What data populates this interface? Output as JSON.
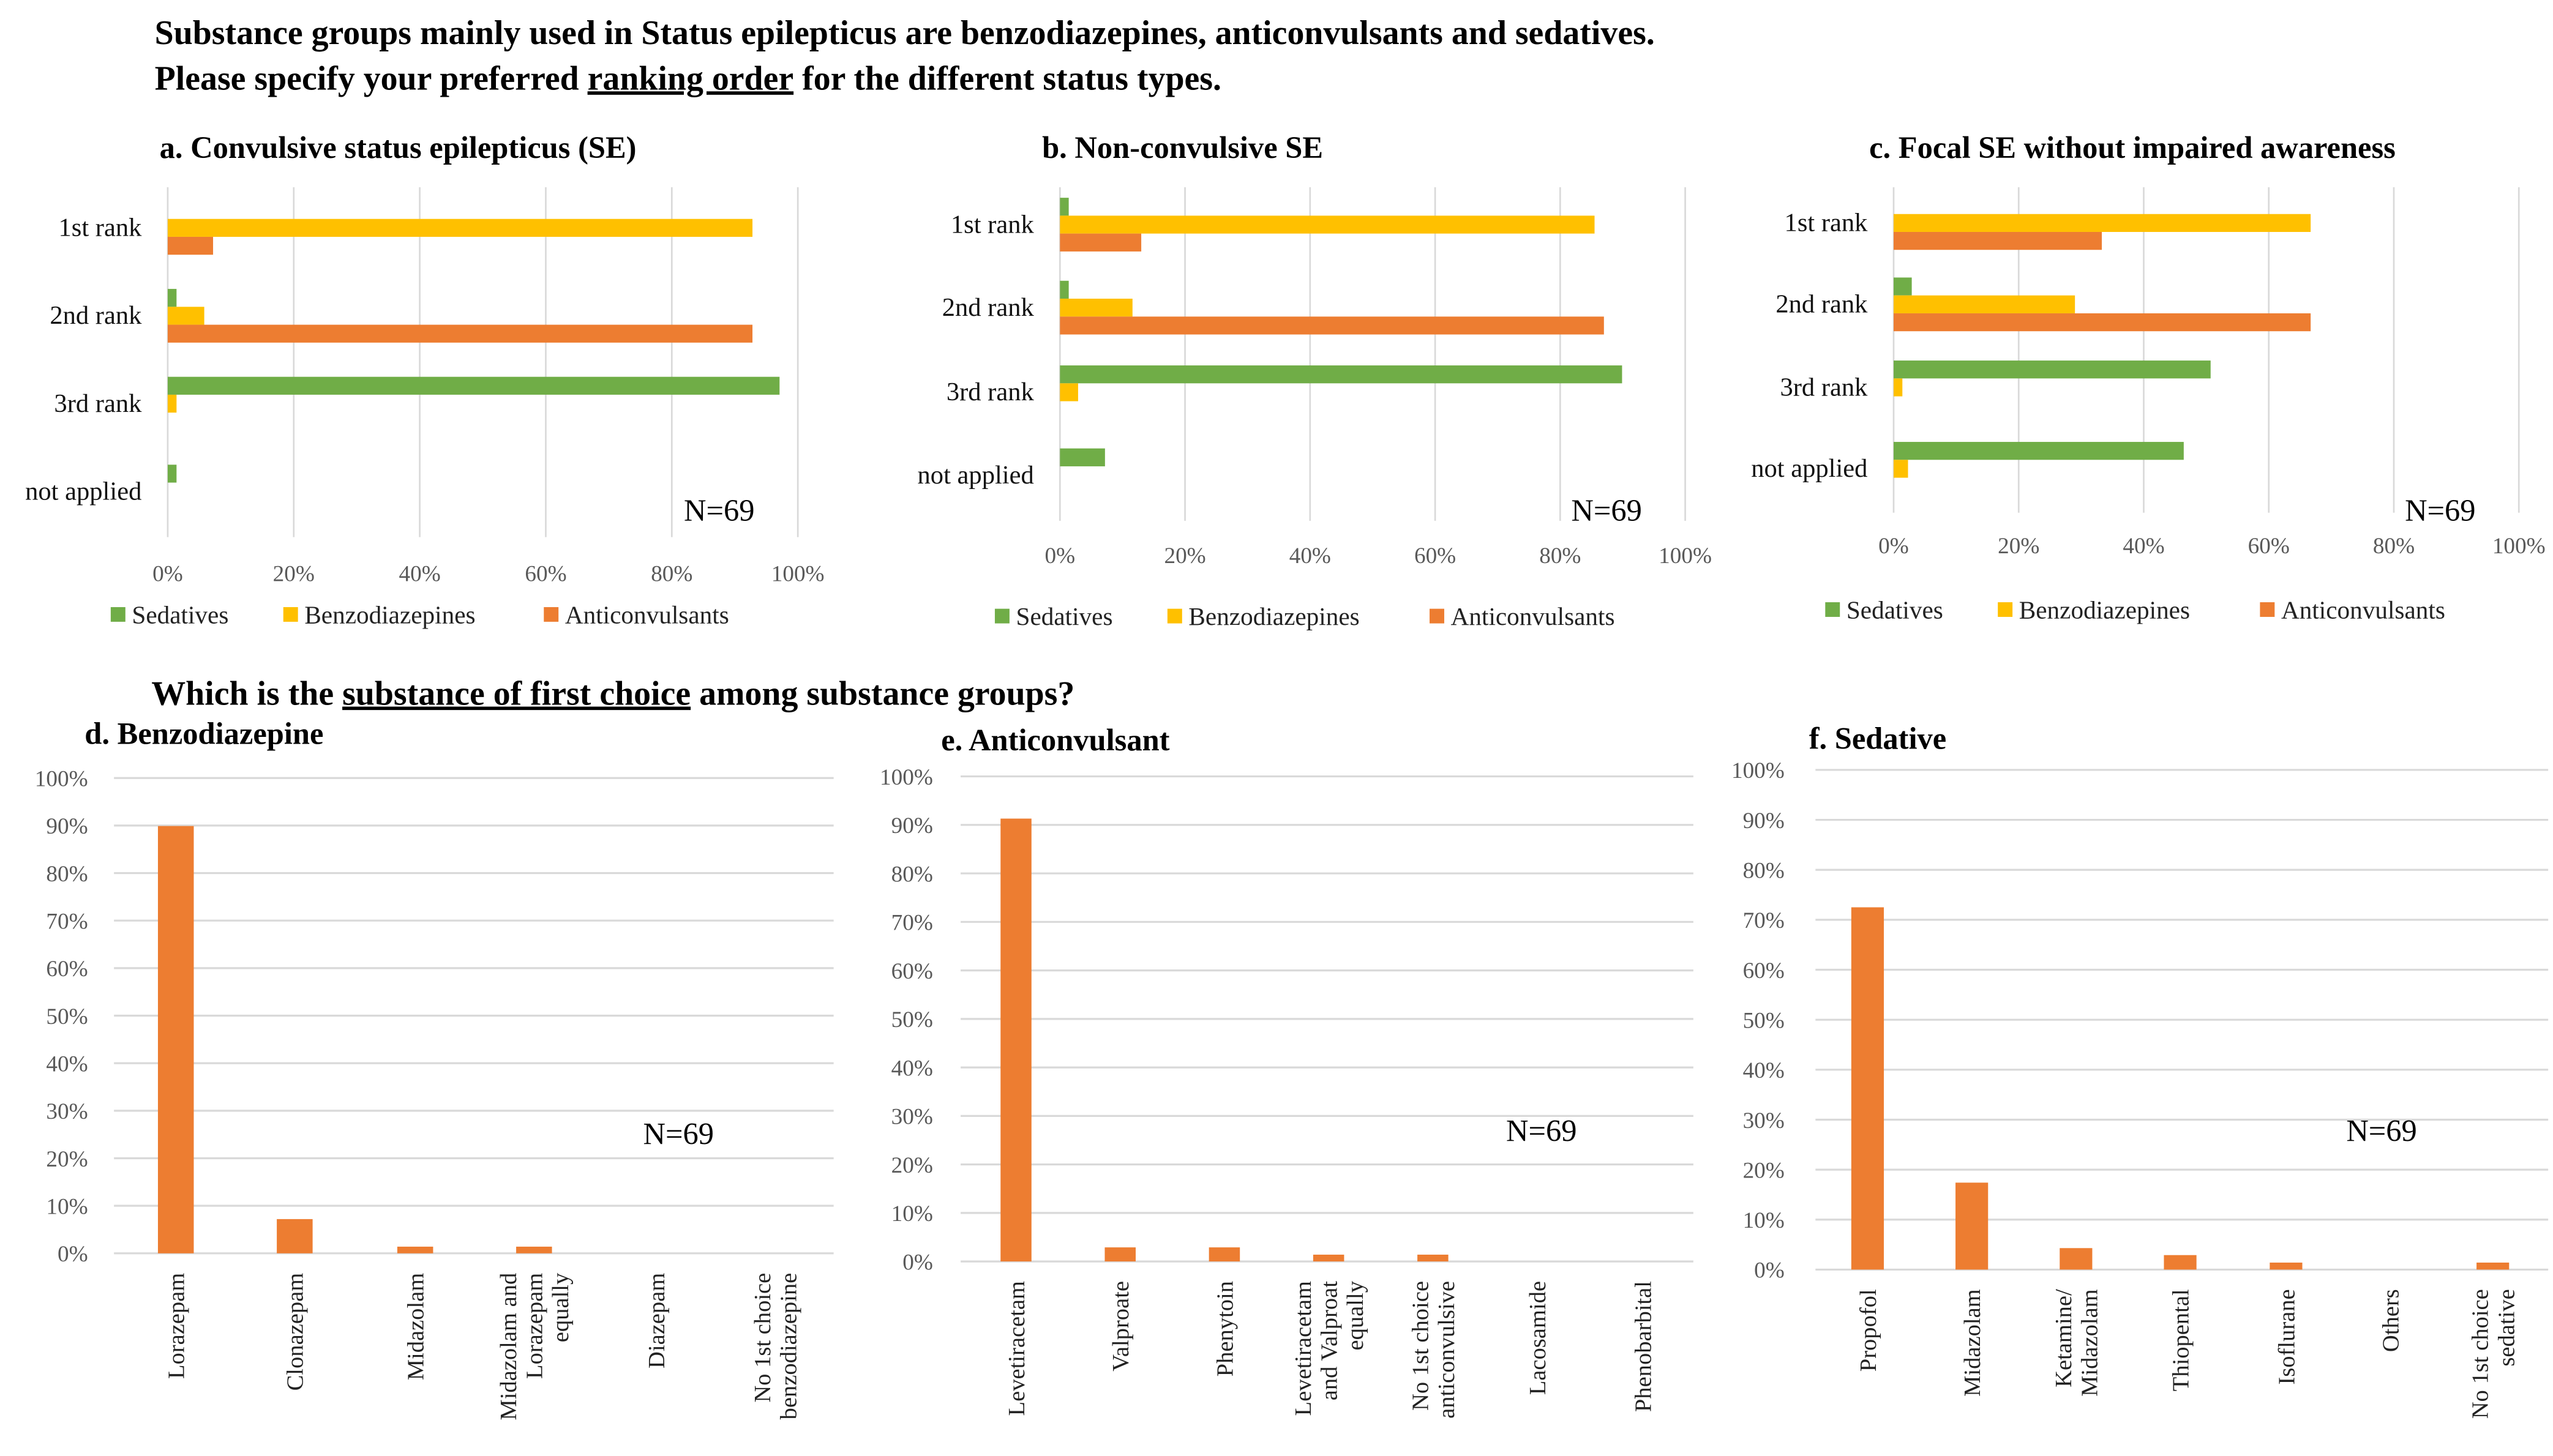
{
  "heading": {
    "line1": "Substance groups mainly used in Status epilepticus are benzodiazepines, anticonvulsants and sedatives.",
    "line2_pre": "Please specify your preferred ",
    "line2_u": "ranking order",
    "line2_post": " for the different status types.",
    "q2_pre": "Which is the ",
    "q2_u": "substance of first choice",
    "q2_post": " among substance groups?"
  },
  "colors": {
    "Sedatives": "#70ad47",
    "Benzodiazepines": "#ffc000",
    "Anticonvulsants": "#ed7d31",
    "grid": "#d9d9d9"
  },
  "chart_data": [
    {
      "type": "bar",
      "orientation": "horizontal",
      "title": "a. Convulsive status epilepticus (SE)",
      "annotation": "N=69",
      "categories": [
        "1st rank",
        "2nd rank",
        "3rd rank",
        "not applied"
      ],
      "series": [
        {
          "name": "Sedatives",
          "values": [
            0,
            1.4,
            97.1,
            1.4
          ]
        },
        {
          "name": "Benzodiazepines",
          "values": [
            92.8,
            5.8,
            1.4,
            0
          ]
        },
        {
          "name": "Anticonvulsants",
          "values": [
            7.2,
            92.8,
            0,
            0
          ]
        }
      ],
      "xlim": [
        0,
        100
      ],
      "ticks": [
        "0%",
        "20%",
        "40%",
        "60%",
        "80%",
        "100%"
      ],
      "legend": "bottom",
      "grid": true
    },
    {
      "type": "bar",
      "orientation": "horizontal",
      "title": "b. Non-convulsive SE",
      "annotation": "N=69",
      "categories": [
        "1st rank",
        "2nd rank",
        "3rd rank",
        "not applied"
      ],
      "series": [
        {
          "name": "Sedatives",
          "values": [
            1.4,
            1.4,
            89.9,
            7.2
          ]
        },
        {
          "name": "Benzodiazepines",
          "values": [
            85.5,
            11.6,
            2.9,
            0
          ]
        },
        {
          "name": "Anticonvulsants",
          "values": [
            13.0,
            87.0,
            0,
            0
          ]
        }
      ],
      "xlim": [
        0,
        100
      ],
      "ticks": [
        "0%",
        "20%",
        "40%",
        "60%",
        "80%",
        "100%"
      ],
      "legend": "bottom",
      "grid": true
    },
    {
      "type": "bar",
      "orientation": "horizontal",
      "title": "c. Focal SE without impaired awareness",
      "annotation": "N=69",
      "categories": [
        "1st rank",
        "2nd rank",
        "3rd rank",
        "not applied"
      ],
      "series": [
        {
          "name": "Sedatives",
          "values": [
            0,
            2.9,
            50.7,
            46.4
          ]
        },
        {
          "name": "Benzodiazepines",
          "values": [
            66.7,
            29.0,
            1.4,
            2.3
          ]
        },
        {
          "name": "Anticonvulsants",
          "values": [
            33.3,
            66.7,
            0,
            0
          ]
        }
      ],
      "xlim": [
        0,
        100
      ],
      "ticks": [
        "0%",
        "20%",
        "40%",
        "60%",
        "80%",
        "100%"
      ],
      "legend": "bottom",
      "grid": true
    },
    {
      "type": "bar",
      "orientation": "vertical",
      "title": "d. Benzodiazepine",
      "annotation": "N=69",
      "categories": [
        [
          "Lorazepam"
        ],
        [
          "Clonazepam"
        ],
        [
          "Midazolam"
        ],
        [
          "Midazolam and",
          "Lorazepam",
          "equally"
        ],
        [
          "Diazepam"
        ],
        [
          "No 1st choice",
          "benzodiazepine"
        ]
      ],
      "values": [
        89.9,
        7.2,
        1.4,
        1.4,
        0,
        0
      ],
      "ylim": [
        0,
        100
      ],
      "ticks": [
        "0%",
        "10%",
        "20%",
        "30%",
        "40%",
        "50%",
        "60%",
        "70%",
        "80%",
        "90%",
        "100%"
      ],
      "grid": true
    },
    {
      "type": "bar",
      "orientation": "vertical",
      "title": "e. Anticonvulsant",
      "annotation": "N=69",
      "categories": [
        [
          "Levetiracetam"
        ],
        [
          "Valproate"
        ],
        [
          "Phenytoin"
        ],
        [
          "Levetiracetam",
          "and Valproat",
          "equally"
        ],
        [
          "No 1st choice",
          "anticonvulsive"
        ],
        [
          "Lacosamide"
        ],
        [
          "Phenobarbital"
        ]
      ],
      "values": [
        91.3,
        2.9,
        2.9,
        1.4,
        1.4,
        0,
        0
      ],
      "ylim": [
        0,
        100
      ],
      "ticks": [
        "0%",
        "10%",
        "20%",
        "30%",
        "40%",
        "50%",
        "60%",
        "70%",
        "80%",
        "90%",
        "100%"
      ],
      "grid": true
    },
    {
      "type": "bar",
      "orientation": "vertical",
      "title": "f. Sedative",
      "annotation": "N=69",
      "categories": [
        [
          "Propofol"
        ],
        [
          "Midazolam"
        ],
        [
          "Ketamine/",
          "Midazolam"
        ],
        [
          "Thiopental"
        ],
        [
          "Isoflurane"
        ],
        [
          "Others"
        ],
        [
          "No 1st choice",
          "sedative"
        ]
      ],
      "values": [
        72.5,
        17.4,
        4.3,
        2.9,
        1.4,
        0,
        1.4
      ],
      "ylim": [
        0,
        100
      ],
      "ticks": [
        "0%",
        "10%",
        "20%",
        "30%",
        "40%",
        "50%",
        "60%",
        "70%",
        "80%",
        "90%",
        "100%"
      ],
      "grid": true
    }
  ]
}
